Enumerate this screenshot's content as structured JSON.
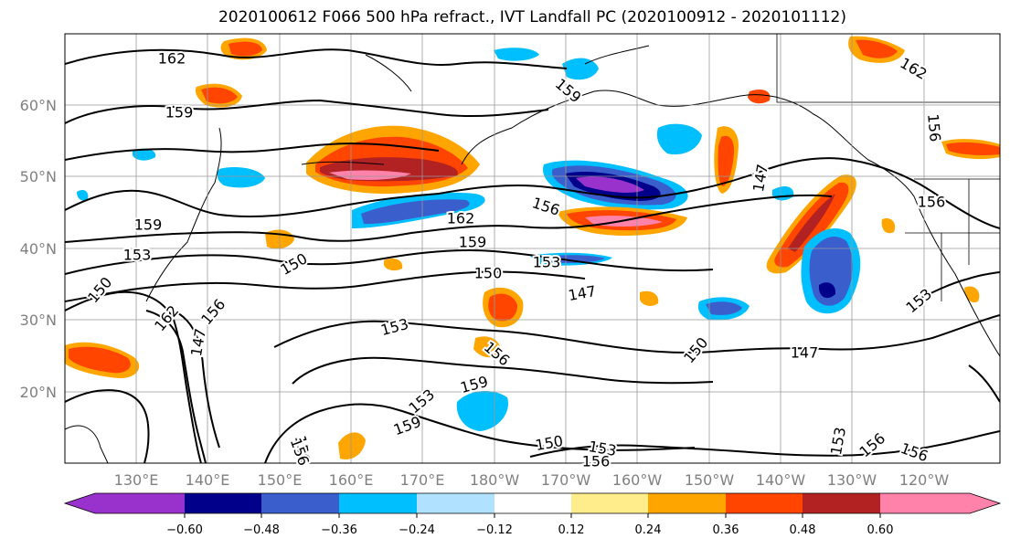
{
  "title": "2020100612 F066 500 hPa refract., IVT Landfall PC (2020100912 - 2020101112)",
  "map": {
    "lat_labels": [
      "60°N",
      "50°N",
      "40°N",
      "30°N",
      "20°N"
    ],
    "lon_labels": [
      "130°E",
      "140°E",
      "150°E",
      "160°E",
      "170°E",
      "180°W",
      "170°W",
      "160°W",
      "150°W",
      "140°W",
      "130°W",
      "120°W"
    ],
    "contour_labels": [
      "162",
      "159",
      "159",
      "159",
      "156",
      "162",
      "159",
      "156",
      "150",
      "153",
      "153",
      "150",
      "147",
      "153",
      "150",
      "147",
      "153",
      "159",
      "153",
      "150",
      "153",
      "156",
      "156",
      "159",
      "162",
      "156",
      "147",
      "156",
      "150",
      "162",
      "156",
      "147",
      "153",
      "156",
      "156",
      "156"
    ]
  },
  "colorbar": {
    "colors": [
      "#9932cc",
      "#00008b",
      "#3a5fcd",
      "#00bfff",
      "#b0e2ff",
      "#ffffff",
      "#ffec8b",
      "#ffa500",
      "#ff4500",
      "#b22222",
      "#ff82ab"
    ],
    "tick_labels": [
      "−0.60",
      "−0.48",
      "−0.36",
      "−0.24",
      "−0.12",
      "0.12",
      "0.24",
      "0.36",
      "0.48",
      "0.60"
    ]
  }
}
